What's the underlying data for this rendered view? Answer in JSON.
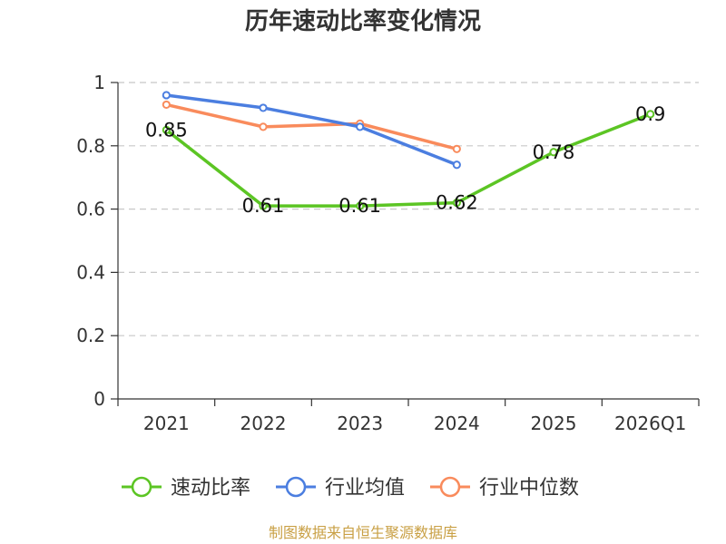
{
  "chart_data": {
    "type": "line",
    "title": "历年速动比率变化情况",
    "xlabel": "",
    "ylabel": "",
    "categories": [
      "2021",
      "2022",
      "2023",
      "2024",
      "2025",
      "2026Q1"
    ],
    "ylim": [
      0,
      1
    ],
    "yticks": [
      "0",
      "0.2",
      "0.4",
      "0.6",
      "0.8",
      "1"
    ],
    "grid": true,
    "legend_position": "bottom",
    "series": [
      {
        "name": "速动比率",
        "color": "#5cc524",
        "values": [
          0.85,
          0.61,
          0.61,
          0.62,
          0.78,
          0.9
        ],
        "data_labels": [
          "0.85",
          "0.61",
          "0.61",
          "0.62",
          "0.78",
          "0.9"
        ]
      },
      {
        "name": "行业均值",
        "color": "#4b7ee0",
        "values": [
          0.96,
          0.92,
          0.86,
          0.74,
          null,
          null
        ]
      },
      {
        "name": "行业中位数",
        "color": "#f98b5c",
        "values": [
          0.93,
          0.86,
          0.87,
          0.79,
          null,
          null
        ]
      }
    ]
  },
  "source": {
    "text": "制图数据来自恒生聚源数据库",
    "color": "#c9a045"
  }
}
